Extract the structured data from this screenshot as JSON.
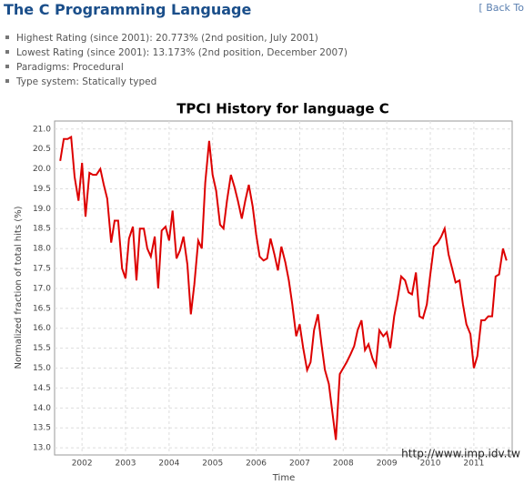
{
  "header": {
    "title": "The C Programming Language",
    "back_link": "[ Back To"
  },
  "bullets": [
    "Highest Rating (since 2001): 20.773% (2nd position, July 2001)",
    "Lowest Rating (since 2001): 13.173% (2nd position, December 2007)",
    "Paradigms: Procedural",
    "Type system: Statically typed"
  ],
  "chart_data": {
    "type": "line",
    "title": "TPCI History for language C",
    "x_label": "Time",
    "y_label": "Normalized fraction of total hits (%)",
    "watermark": "http://www.imp.idv.tw",
    "color": "#dd0000",
    "grid": true,
    "xlim": [
      2001.37,
      2011.88
    ],
    "ylim": [
      12.82,
      21.2
    ],
    "xticks": [
      2002,
      2003,
      2004,
      2005,
      2006,
      2007,
      2008,
      2009,
      2010,
      2011
    ],
    "yticks": [
      {
        "value": 13,
        "label": "13.0"
      },
      13.5,
      {
        "value": 14,
        "label": "14.0"
      },
      14.5,
      {
        "value": 15,
        "label": "15.0"
      },
      15.5,
      {
        "value": 16,
        "label": "16.0"
      },
      16.5,
      {
        "value": 17,
        "label": "17.0"
      },
      17.5,
      {
        "value": 18,
        "label": "18.0"
      },
      18.5,
      {
        "value": 19,
        "label": "19.0"
      },
      19.5,
      {
        "value": 20,
        "label": "20.0"
      },
      20.5,
      {
        "value": 21,
        "label": "21.0"
      }
    ],
    "x": [
      2001.5,
      2001.58,
      2001.67,
      2001.75,
      2001.83,
      2001.92,
      2002,
      2002.08,
      2002.17,
      2002.25,
      2002.33,
      2002.42,
      2002.5,
      2002.58,
      2002.67,
      2002.75,
      2002.83,
      2002.92,
      2003,
      2003.08,
      2003.17,
      2003.25,
      2003.33,
      2003.42,
      2003.5,
      2003.58,
      2003.67,
      2003.75,
      2003.83,
      2003.92,
      2004,
      2004.08,
      2004.17,
      2004.25,
      2004.33,
      2004.42,
      2004.5,
      2004.58,
      2004.67,
      2004.75,
      2004.83,
      2004.92,
      2005,
      2005.08,
      2005.17,
      2005.25,
      2005.33,
      2005.42,
      2005.5,
      2005.58,
      2005.67,
      2005.75,
      2005.83,
      2005.92,
      2006,
      2006.08,
      2006.17,
      2006.25,
      2006.33,
      2006.42,
      2006.5,
      2006.58,
      2006.67,
      2006.75,
      2006.83,
      2006.92,
      2007,
      2007.08,
      2007.17,
      2007.25,
      2007.33,
      2007.42,
      2007.5,
      2007.58,
      2007.67,
      2007.75,
      2007.83,
      2007.92,
      2008,
      2008.08,
      2008.17,
      2008.25,
      2008.33,
      2008.42,
      2008.5,
      2008.58,
      2008.67,
      2008.75,
      2008.83,
      2008.92,
      2009,
      2009.08,
      2009.17,
      2009.25,
      2009.33,
      2009.42,
      2009.5,
      2009.58,
      2009.67,
      2009.75,
      2009.83,
      2009.92,
      2010,
      2010.08,
      2010.17,
      2010.25,
      2010.33,
      2010.42,
      2010.5,
      2010.58,
      2010.67,
      2010.75,
      2010.83,
      2010.92,
      2011,
      2011.08,
      2011.17,
      2011.25,
      2011.33,
      2011.42,
      2011.5,
      2011.58,
      2011.67,
      2011.75
    ],
    "values": [
      20.2,
      20.75,
      20.75,
      20.8,
      19.8,
      19.2,
      20.15,
      18.8,
      19.9,
      19.85,
      19.85,
      20.0,
      19.6,
      19.25,
      18.15,
      18.7,
      18.7,
      17.5,
      17.25,
      18.25,
      18.55,
      17.2,
      18.5,
      18.5,
      18.0,
      17.8,
      18.3,
      17.0,
      18.45,
      18.55,
      18.2,
      18.95,
      17.75,
      17.95,
      18.3,
      17.6,
      16.35,
      17.1,
      18.2,
      18.0,
      19.65,
      20.7,
      19.85,
      19.45,
      18.6,
      18.5,
      19.2,
      19.85,
      19.55,
      19.2,
      18.75,
      19.2,
      19.6,
      19.05,
      18.35,
      17.8,
      17.7,
      17.75,
      18.25,
      17.85,
      17.45,
      18.05,
      17.65,
      17.2,
      16.6,
      15.8,
      16.1,
      15.5,
      14.95,
      15.15,
      15.95,
      16.35,
      15.6,
      14.95,
      14.6,
      13.9,
      13.2,
      14.85,
      15.0,
      15.15,
      15.35,
      15.55,
      15.95,
      16.2,
      15.45,
      15.6,
      15.25,
      15.05,
      15.95,
      15.8,
      15.9,
      15.5,
      16.3,
      16.75,
      17.3,
      17.2,
      16.9,
      16.85,
      17.4,
      16.3,
      16.25,
      16.6,
      17.35,
      18.05,
      18.15,
      18.3,
      18.5,
      17.85,
      17.5,
      17.15,
      17.2,
      16.6,
      16.1,
      15.85,
      15.0,
      15.3,
      16.2,
      16.2,
      16.3,
      16.3,
      17.3,
      17.35,
      18.0,
      17.7
    ]
  }
}
